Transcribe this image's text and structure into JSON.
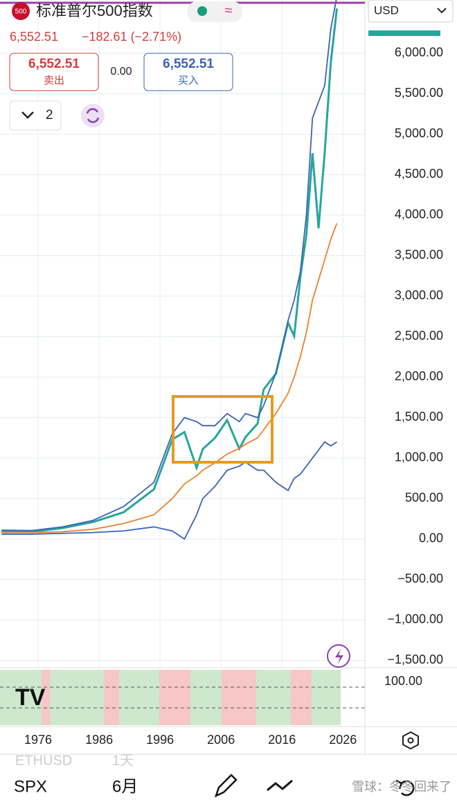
{
  "header": {
    "logo": "500",
    "title": "标准普尔500指数",
    "price": "6,552.51",
    "change": "−182.61 (−2.71%)"
  },
  "trade": {
    "sell_price": "6,552.51",
    "sell_label": "卖出",
    "spread": "0.00",
    "buy_price": "6,552.51",
    "buy_label": "买入"
  },
  "layout_count": "2",
  "chart_data": {
    "type": "line",
    "currency": "USD",
    "grid": true,
    "x": [
      1970,
      1975,
      1980,
      1985,
      1990,
      1995,
      1998,
      2000,
      2002,
      2003,
      2005,
      2007,
      2009,
      2010,
      2012,
      2013,
      2015,
      2017,
      2018,
      2019,
      2020,
      2021,
      2022,
      2023,
      2024,
      2025
    ],
    "series": [
      {
        "color": "#26a69a",
        "values": [
          90,
          90,
          135,
          210,
          330,
          615,
          1229,
          1320,
          880,
          1111,
          1248,
          1468,
          1115,
          1257,
          1426,
          1848,
          2043,
          2673,
          2506,
          3230,
          3756,
          4766,
          3839,
          4769,
          5881,
          6552.51
        ]
      },
      {
        "color": "#3b62b8",
        "values": [
          110,
          105,
          150,
          230,
          400,
          700,
          1300,
          1500,
          1450,
          1400,
          1400,
          1550,
          1450,
          1550,
          1500,
          1650,
          2050,
          2700,
          2950,
          3300,
          4000,
          5200,
          5400,
          5600,
          6300,
          6700
        ]
      },
      {
        "color": "#3b62b8",
        "values": [
          60,
          60,
          70,
          80,
          100,
          150,
          100,
          0,
          300,
          500,
          650,
          850,
          900,
          950,
          850,
          850,
          700,
          600,
          750,
          800,
          900,
          1000,
          1100,
          1200,
          1150,
          1200
        ]
      },
      {
        "color": "#e8822a",
        "values": [
          80,
          80,
          90,
          120,
          190,
          300,
          500,
          680,
          780,
          850,
          940,
          1050,
          1120,
          1170,
          1250,
          1350,
          1550,
          1800,
          2000,
          2250,
          2550,
          2950,
          3200,
          3450,
          3700,
          3900
        ]
      }
    ],
    "xlim": [
      1969.75,
      2029.6
    ],
    "xticks": [
      1976,
      1986,
      1996,
      2006,
      2016,
      2026
    ],
    "ylim": [
      -1590,
      6658
    ],
    "yticks": [
      {
        "value": 6000,
        "label": "6,000.00"
      },
      {
        "value": 5500,
        "label": "5,500.00"
      },
      {
        "value": 5000,
        "label": "5,000.00"
      },
      {
        "value": 4500,
        "label": "4,500.00"
      },
      {
        "value": 4000,
        "label": "4,000.00"
      },
      {
        "value": 3500,
        "label": "3,500.00"
      },
      {
        "value": 3000,
        "label": "3,000.00"
      },
      {
        "value": 2500,
        "label": "2,500.00"
      },
      {
        "value": 2000,
        "label": "2,000.00"
      },
      {
        "value": 1500,
        "label": "1,500.00"
      },
      {
        "value": 1000,
        "label": "1,000.00"
      },
      {
        "value": 500,
        "label": "500.00"
      },
      {
        "value": 0,
        "label": "0.00"
      },
      {
        "value": -500,
        "label": "−500.00"
      },
      {
        "value": -1000,
        "label": "−1,000.00"
      },
      {
        "value": -1500,
        "label": "−1,500.00"
      }
    ]
  },
  "indicator": {
    "yticks": [
      {
        "value": 100,
        "label": "100.00"
      }
    ]
  },
  "toolbar": {
    "faded_symbol": "ETHUSD",
    "faded_interval": "1天",
    "symbol": "SPX",
    "interval": "6月",
    "watermark": "雪球：冬冬回来了"
  }
}
